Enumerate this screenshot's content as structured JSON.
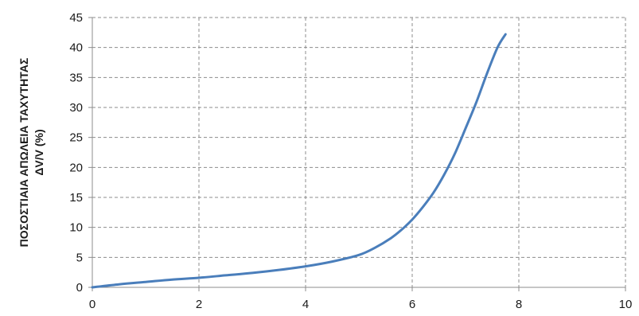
{
  "chart_data": {
    "type": "line",
    "title": "",
    "xlabel": "",
    "ylabel_lines": [
      "ΠΟΣΟΣΤΙΑΙΑ ΑΠΩΛΕΙΑ ΤΑΧΥΤΗΤΑΣ",
      "ΔV/V (%)"
    ],
    "xlim": [
      0,
      10
    ],
    "ylim": [
      0,
      45
    ],
    "x_ticks": [
      0,
      2,
      4,
      6,
      8,
      10
    ],
    "y_ticks": [
      0,
      5,
      10,
      15,
      20,
      25,
      30,
      35,
      40,
      45
    ],
    "grid": true,
    "grid_style": "dashed",
    "legend": "none",
    "line_color": "#4a7ebb",
    "grid_color": "#8c8c8c",
    "series": [
      {
        "x": [
          0,
          0.5,
          1.0,
          1.5,
          2.0,
          2.5,
          3.0,
          3.5,
          4.0,
          4.5,
          5.0,
          5.3,
          5.6,
          5.8,
          6.0,
          6.2,
          6.4,
          6.6,
          6.8,
          7.0,
          7.2,
          7.4,
          7.6,
          7.75
        ],
        "y": [
          0,
          0.5,
          0.9,
          1.3,
          1.6,
          2.0,
          2.4,
          2.9,
          3.5,
          4.3,
          5.4,
          6.6,
          8.2,
          9.6,
          11.3,
          13.4,
          15.8,
          18.8,
          22.3,
          26.5,
          30.8,
          35.6,
          40.0,
          42.2
        ]
      }
    ]
  }
}
